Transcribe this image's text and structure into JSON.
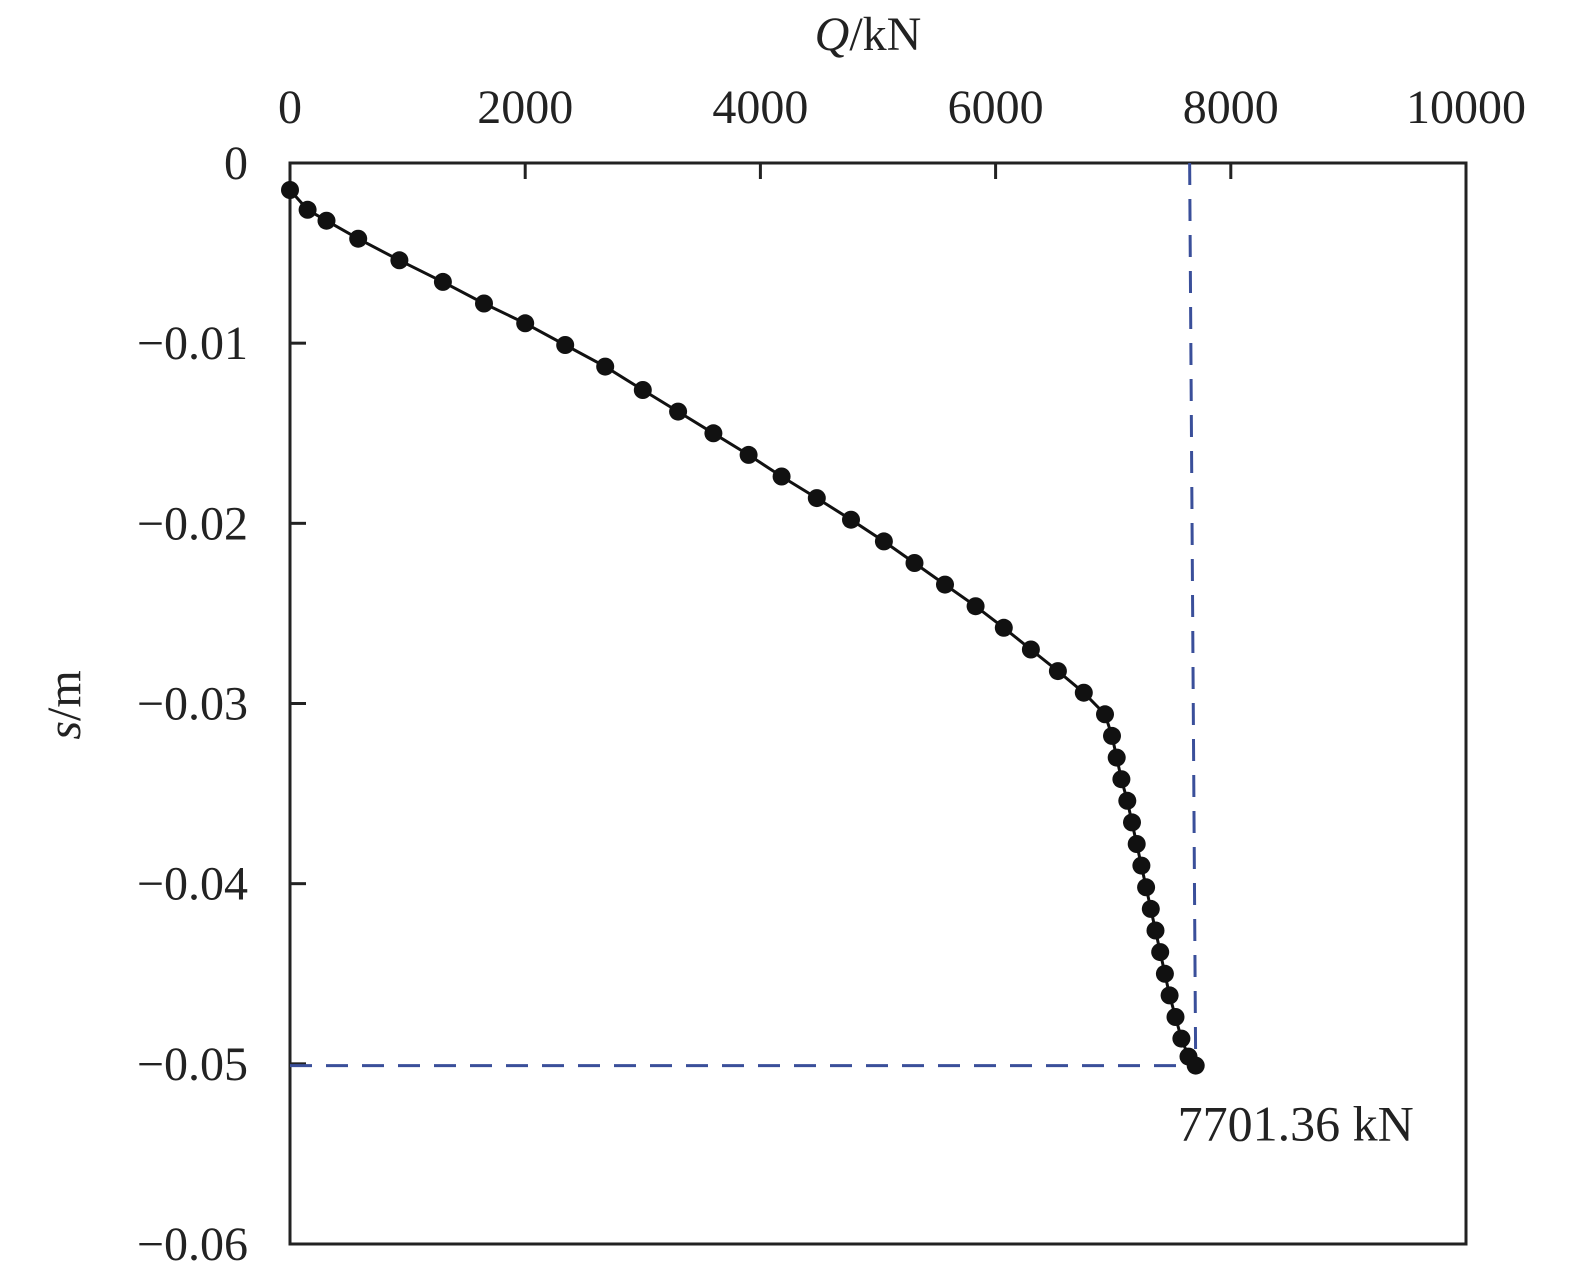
{
  "chart_data": {
    "type": "line",
    "title": "",
    "xlabel": "Q/kN",
    "xlabel_italic_part": "Q",
    "xlabel_unit": "/kN",
    "ylabel": "s/m",
    "ylabel_italic_part": "s",
    "ylabel_unit": "/m",
    "x_axis_position": "top",
    "xlim": [
      0,
      10000
    ],
    "ylim": [
      -0.06,
      0
    ],
    "x_ticks": [
      0,
      2000,
      4000,
      6000,
      8000,
      10000
    ],
    "x_tick_labels": [
      "0",
      "2000",
      "4000",
      "6000",
      "8000",
      "10000"
    ],
    "y_ticks": [
      0,
      -0.01,
      -0.02,
      -0.03,
      -0.04,
      -0.05,
      -0.06
    ],
    "y_tick_labels": [
      "0",
      "−0.01",
      "−0.02",
      "−0.03",
      "−0.04",
      "−0.05",
      "−0.06"
    ],
    "grid": false,
    "series": [
      {
        "color": "#111111",
        "marker": "circle",
        "points": [
          [
            0,
            -0.0015
          ],
          [
            150,
            -0.0026
          ],
          [
            310,
            -0.0032
          ],
          [
            580,
            -0.0042
          ],
          [
            930,
            -0.0054
          ],
          [
            1300,
            -0.0066
          ],
          [
            1650,
            -0.0078
          ],
          [
            2000,
            -0.0089
          ],
          [
            2340,
            -0.0101
          ],
          [
            2680,
            -0.0113
          ],
          [
            3000,
            -0.0126
          ],
          [
            3300,
            -0.0138
          ],
          [
            3600,
            -0.015
          ],
          [
            3900,
            -0.0162
          ],
          [
            4180,
            -0.0174
          ],
          [
            4480,
            -0.0186
          ],
          [
            4770,
            -0.0198
          ],
          [
            5050,
            -0.021
          ],
          [
            5310,
            -0.0222
          ],
          [
            5570,
            -0.0234
          ],
          [
            5830,
            -0.0246
          ],
          [
            6070,
            -0.0258
          ],
          [
            6300,
            -0.027
          ],
          [
            6530,
            -0.0282
          ],
          [
            6750,
            -0.0294
          ],
          [
            6930,
            -0.0306
          ],
          [
            6990,
            -0.0318
          ],
          [
            7030,
            -0.033
          ],
          [
            7070,
            -0.0342
          ],
          [
            7120,
            -0.0354
          ],
          [
            7160,
            -0.0366
          ],
          [
            7200,
            -0.0378
          ],
          [
            7240,
            -0.039
          ],
          [
            7280,
            -0.0402
          ],
          [
            7320,
            -0.0414
          ],
          [
            7360,
            -0.0426
          ],
          [
            7400,
            -0.0438
          ],
          [
            7440,
            -0.045
          ],
          [
            7480,
            -0.0462
          ],
          [
            7530,
            -0.0474
          ],
          [
            7580,
            -0.0486
          ],
          [
            7640,
            -0.0496
          ],
          [
            7701.36,
            -0.0501
          ]
        ]
      }
    ],
    "reference_lines": {
      "color": "#3a4f9a",
      "vertical_from": [
        7650,
        0
      ],
      "vertical_to": [
        7701.36,
        -0.0501
      ],
      "horizontal_y": -0.0501,
      "horizontal_x_to": 7701.36
    },
    "annotation": {
      "text": "7701.36 kN",
      "x": 7701.36,
      "y": -0.0501
    }
  }
}
